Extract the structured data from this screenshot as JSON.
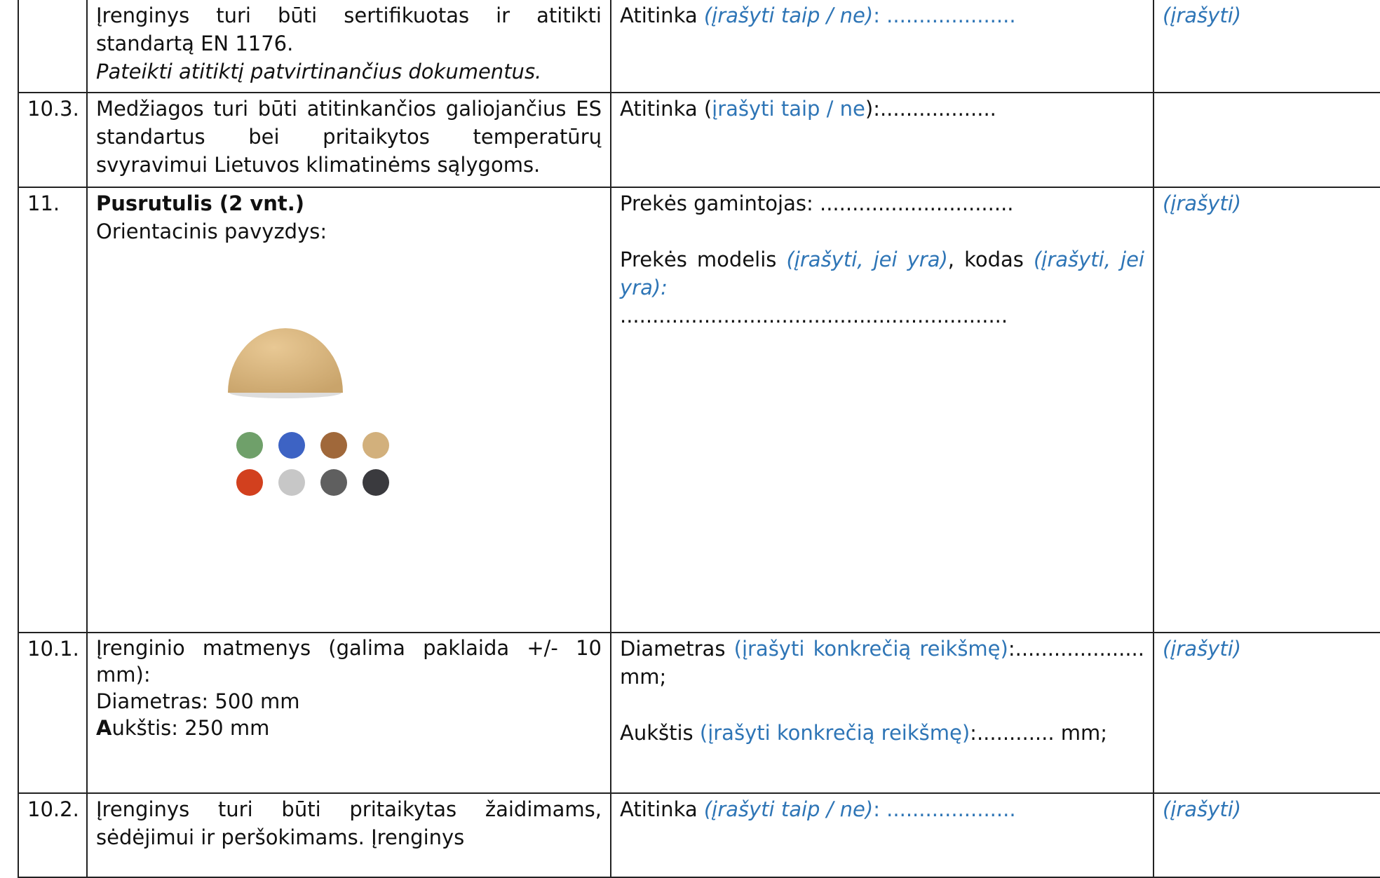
{
  "table": {
    "rows": [
      {
        "description": {
          "text": "Įrenginys turi būti sertifikuotas ir atitikti standartą EN 1176.",
          "note": "Pateikti atitiktį patvirtinančius dokumentus."
        },
        "compliance": {
          "label": "Atitinka ",
          "hint": "(įrašyti taip / ne)",
          "fill": ": ...................."
        },
        "remark": "(įrašyti)"
      },
      {
        "number": "10.3.",
        "description": {
          "text": "Medžiagos turi būti atitinkančios galiojančius ES standartus bei pritaikytos temperatūrų svyravimui Lietuvos klimatinėms sąlygoms."
        },
        "compliance": {
          "label": "Atitinka (",
          "hint": "įrašyti taip / ne",
          "fill": "):.................."
        }
      },
      {
        "number": "11.",
        "description": {
          "title": "Pusrutulis (2 vnt.)",
          "text": "Orientacinis pavyzdys:"
        },
        "compliance": {
          "manufacturer": "Prekės gamintojas: ..............................",
          "model": "Prekės modelis ",
          "model_hint": "(įrašyti, jei yra)",
          "code": ", kodas ",
          "code_hint": "(įrašyti, jei yra):",
          "dots": "............................................................"
        },
        "remark": "(įrašyti)"
      },
      {
        "number": "10.1.",
        "description": {
          "text": "Įrenginio matmenys (galima paklaida +/- 10 mm):",
          "diameter": "Diametras: 500 mm",
          "height_initial": "A",
          "height_rest": "ukštis: 250 mm"
        },
        "compliance": {
          "diameter_label": "Diametras ",
          "diameter_hint": "(įrašyti konkrečią reikšmę)",
          "diameter_fill": ":.................... mm;",
          "height_label": "Aukštis ",
          "height_hint": "(įrašyti konkrečią reikšmę)",
          "height_fill": ":............ mm;"
        },
        "remark": "(įrašyti)"
      },
      {
        "number": "10.2.",
        "description": {
          "text": "Įrenginys turi būti pritaikytas žaidimams, sėdėjimui ir peršokimams. Įrenginys"
        },
        "compliance": {
          "label": "Atitinka ",
          "hint": "(įrašyti taip / ne)",
          "fill": ": ...................."
        },
        "remark": "(įrašyti)"
      }
    ]
  }
}
